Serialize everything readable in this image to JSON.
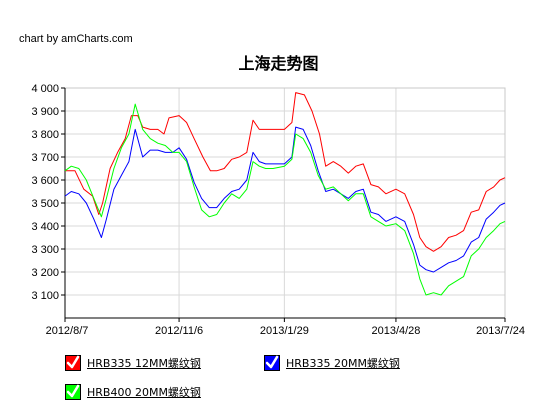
{
  "credit": "chart by amCharts.com",
  "chart_data": {
    "type": "line",
    "title": "上海走势图",
    "xlabel": "",
    "ylabel": "",
    "ylim": [
      3000,
      4000
    ],
    "y_ticks": [
      "4 000",
      "3 900",
      "3 800",
      "3 700",
      "3 600",
      "3 500",
      "3 400",
      "3 300",
      "3 200",
      "3 100"
    ],
    "y_tick_values": [
      4000,
      3900,
      3800,
      3700,
      3600,
      3500,
      3400,
      3300,
      3200,
      3100
    ],
    "x_range": [
      "2012-08-07",
      "2013-07-24"
    ],
    "x_ticks": [
      {
        "label": "2012/8/7",
        "date": "2012-08-07"
      },
      {
        "label": "2012/11/6",
        "date": "2012-11-06"
      },
      {
        "label": "2013/1/29",
        "date": "2013-01-29"
      },
      {
        "label": "2013/4/28",
        "date": "2013-04-28"
      },
      {
        "label": "2013/7/24",
        "date": "2013-07-24"
      }
    ],
    "grid": true,
    "legend_position": "bottom",
    "series": [
      {
        "name": "HRB335 12MM螺纹钢",
        "color": "#ff0000",
        "points": [
          [
            "2012-08-07",
            3640
          ],
          [
            "2012-08-15",
            3640
          ],
          [
            "2012-08-22",
            3560
          ],
          [
            "2012-08-29",
            3530
          ],
          [
            "2012-09-03",
            3450
          ],
          [
            "2012-09-06",
            3500
          ],
          [
            "2012-09-12",
            3650
          ],
          [
            "2012-09-18",
            3720
          ],
          [
            "2012-09-24",
            3780
          ],
          [
            "2012-09-29",
            3880
          ],
          [
            "2012-10-04",
            3880
          ],
          [
            "2012-10-08",
            3830
          ],
          [
            "2012-10-14",
            3820
          ],
          [
            "2012-10-20",
            3820
          ],
          [
            "2012-10-25",
            3800
          ],
          [
            "2012-10-29",
            3870
          ],
          [
            "2012-11-06",
            3880
          ],
          [
            "2012-11-12",
            3850
          ],
          [
            "2012-11-18",
            3780
          ],
          [
            "2012-11-25",
            3700
          ],
          [
            "2012-12-01",
            3640
          ],
          [
            "2012-12-06",
            3640
          ],
          [
            "2012-12-12",
            3650
          ],
          [
            "2012-12-18",
            3690
          ],
          [
            "2012-12-24",
            3700
          ],
          [
            "2012-12-30",
            3720
          ],
          [
            "2013-01-04",
            3860
          ],
          [
            "2013-01-09",
            3820
          ],
          [
            "2013-01-14",
            3820
          ],
          [
            "2013-01-20",
            3820
          ],
          [
            "2013-01-29",
            3820
          ],
          [
            "2013-02-04",
            3850
          ],
          [
            "2013-02-07",
            3980
          ],
          [
            "2013-02-14",
            3970
          ],
          [
            "2013-02-20",
            3900
          ],
          [
            "2013-02-26",
            3800
          ],
          [
            "2013-03-03",
            3660
          ],
          [
            "2013-03-09",
            3680
          ],
          [
            "2013-03-15",
            3660
          ],
          [
            "2013-03-21",
            3630
          ],
          [
            "2013-03-27",
            3660
          ],
          [
            "2013-04-02",
            3670
          ],
          [
            "2013-04-08",
            3580
          ],
          [
            "2013-04-14",
            3570
          ],
          [
            "2013-04-20",
            3540
          ],
          [
            "2013-04-28",
            3560
          ],
          [
            "2013-05-05",
            3540
          ],
          [
            "2013-05-12",
            3450
          ],
          [
            "2013-05-17",
            3350
          ],
          [
            "2013-05-22",
            3310
          ],
          [
            "2013-05-28",
            3290
          ],
          [
            "2013-06-03",
            3310
          ],
          [
            "2013-06-09",
            3350
          ],
          [
            "2013-06-15",
            3360
          ],
          [
            "2013-06-21",
            3380
          ],
          [
            "2013-06-27",
            3460
          ],
          [
            "2013-07-03",
            3470
          ],
          [
            "2013-07-09",
            3550
          ],
          [
            "2013-07-15",
            3570
          ],
          [
            "2013-07-20",
            3600
          ],
          [
            "2013-07-24",
            3610
          ]
        ]
      },
      {
        "name": "HRB335 20MM螺纹钢",
        "color": "#0000ff",
        "points": [
          [
            "2012-08-07",
            3530
          ],
          [
            "2012-08-12",
            3550
          ],
          [
            "2012-08-18",
            3540
          ],
          [
            "2012-08-24",
            3500
          ],
          [
            "2012-08-30",
            3430
          ],
          [
            "2012-09-05",
            3350
          ],
          [
            "2012-09-09",
            3430
          ],
          [
            "2012-09-15",
            3560
          ],
          [
            "2012-09-21",
            3620
          ],
          [
            "2012-09-27",
            3680
          ],
          [
            "2012-10-02",
            3820
          ],
          [
            "2012-10-08",
            3700
          ],
          [
            "2012-10-14",
            3730
          ],
          [
            "2012-10-20",
            3730
          ],
          [
            "2012-10-26",
            3720
          ],
          [
            "2012-11-01",
            3720
          ],
          [
            "2012-11-06",
            3740
          ],
          [
            "2012-11-12",
            3690
          ],
          [
            "2012-11-18",
            3590
          ],
          [
            "2012-11-24",
            3520
          ],
          [
            "2012-11-30",
            3480
          ],
          [
            "2012-12-06",
            3480
          ],
          [
            "2012-12-12",
            3520
          ],
          [
            "2012-12-18",
            3550
          ],
          [
            "2012-12-24",
            3560
          ],
          [
            "2012-12-30",
            3600
          ],
          [
            "2013-01-04",
            3720
          ],
          [
            "2013-01-09",
            3680
          ],
          [
            "2013-01-14",
            3670
          ],
          [
            "2013-01-20",
            3670
          ],
          [
            "2013-01-29",
            3670
          ],
          [
            "2013-02-04",
            3700
          ],
          [
            "2013-02-07",
            3830
          ],
          [
            "2013-02-13",
            3820
          ],
          [
            "2013-02-19",
            3750
          ],
          [
            "2013-02-25",
            3640
          ],
          [
            "2013-03-03",
            3550
          ],
          [
            "2013-03-09",
            3560
          ],
          [
            "2013-03-15",
            3540
          ],
          [
            "2013-03-21",
            3520
          ],
          [
            "2013-03-27",
            3550
          ],
          [
            "2013-04-02",
            3560
          ],
          [
            "2013-04-08",
            3460
          ],
          [
            "2013-04-14",
            3450
          ],
          [
            "2013-04-20",
            3420
          ],
          [
            "2013-04-28",
            3440
          ],
          [
            "2013-05-05",
            3420
          ],
          [
            "2013-05-12",
            3320
          ],
          [
            "2013-05-17",
            3230
          ],
          [
            "2013-05-22",
            3210
          ],
          [
            "2013-05-28",
            3200
          ],
          [
            "2013-06-03",
            3220
          ],
          [
            "2013-06-09",
            3240
          ],
          [
            "2013-06-15",
            3250
          ],
          [
            "2013-06-21",
            3270
          ],
          [
            "2013-06-27",
            3330
          ],
          [
            "2013-07-03",
            3350
          ],
          [
            "2013-07-09",
            3430
          ],
          [
            "2013-07-15",
            3460
          ],
          [
            "2013-07-20",
            3490
          ],
          [
            "2013-07-24",
            3500
          ]
        ]
      },
      {
        "name": "HRB400 20MM螺纹钢",
        "color": "#00ff00",
        "points": [
          [
            "2012-08-07",
            3640
          ],
          [
            "2012-08-12",
            3660
          ],
          [
            "2012-08-18",
            3650
          ],
          [
            "2012-08-24",
            3600
          ],
          [
            "2012-08-30",
            3520
          ],
          [
            "2012-09-05",
            3440
          ],
          [
            "2012-09-09",
            3520
          ],
          [
            "2012-09-15",
            3650
          ],
          [
            "2012-09-21",
            3740
          ],
          [
            "2012-09-27",
            3800
          ],
          [
            "2012-10-02",
            3930
          ],
          [
            "2012-10-08",
            3820
          ],
          [
            "2012-10-14",
            3780
          ],
          [
            "2012-10-20",
            3760
          ],
          [
            "2012-10-26",
            3750
          ],
          [
            "2012-11-01",
            3720
          ],
          [
            "2012-11-06",
            3720
          ],
          [
            "2012-11-12",
            3680
          ],
          [
            "2012-11-18",
            3570
          ],
          [
            "2012-11-24",
            3470
          ],
          [
            "2012-11-30",
            3440
          ],
          [
            "2012-12-06",
            3450
          ],
          [
            "2012-12-12",
            3500
          ],
          [
            "2012-12-18",
            3540
          ],
          [
            "2012-12-24",
            3520
          ],
          [
            "2012-12-30",
            3560
          ],
          [
            "2013-01-04",
            3680
          ],
          [
            "2013-01-09",
            3660
          ],
          [
            "2013-01-14",
            3650
          ],
          [
            "2013-01-20",
            3650
          ],
          [
            "2013-01-29",
            3660
          ],
          [
            "2013-02-04",
            3690
          ],
          [
            "2013-02-07",
            3800
          ],
          [
            "2013-02-13",
            3780
          ],
          [
            "2013-02-19",
            3720
          ],
          [
            "2013-02-25",
            3620
          ],
          [
            "2013-03-03",
            3560
          ],
          [
            "2013-03-09",
            3570
          ],
          [
            "2013-03-15",
            3540
          ],
          [
            "2013-03-21",
            3510
          ],
          [
            "2013-03-27",
            3540
          ],
          [
            "2013-04-02",
            3540
          ],
          [
            "2013-04-08",
            3440
          ],
          [
            "2013-04-14",
            3420
          ],
          [
            "2013-04-20",
            3400
          ],
          [
            "2013-04-28",
            3410
          ],
          [
            "2013-05-05",
            3380
          ],
          [
            "2013-05-12",
            3280
          ],
          [
            "2013-05-17",
            3170
          ],
          [
            "2013-05-22",
            3100
          ],
          [
            "2013-05-28",
            3110
          ],
          [
            "2013-06-03",
            3100
          ],
          [
            "2013-06-09",
            3140
          ],
          [
            "2013-06-15",
            3160
          ],
          [
            "2013-06-21",
            3180
          ],
          [
            "2013-06-27",
            3270
          ],
          [
            "2013-07-03",
            3300
          ],
          [
            "2013-07-09",
            3350
          ],
          [
            "2013-07-15",
            3380
          ],
          [
            "2013-07-20",
            3410
          ],
          [
            "2013-07-24",
            3420
          ]
        ]
      }
    ]
  }
}
